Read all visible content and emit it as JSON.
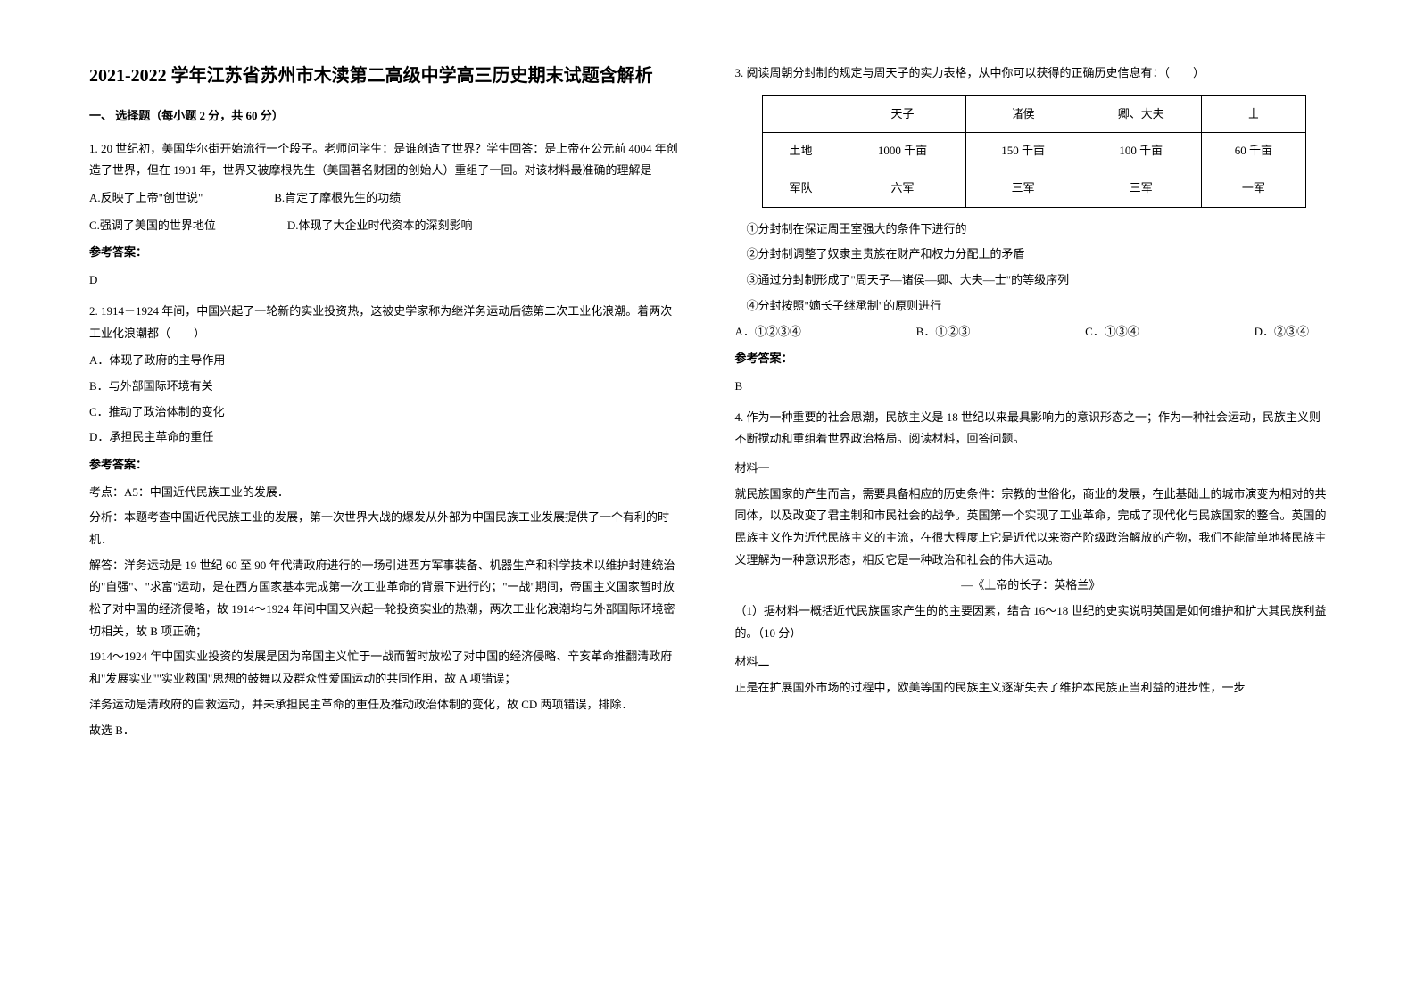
{
  "title": "2021-2022 学年江苏省苏州市木渎第二高级中学高三历史期末试题含解析",
  "section1_header": "一、 选择题（每小题 2 分，共 60 分）",
  "q1": {
    "text": "1. 20 世纪初，美国华尔街开始流行一个段子。老师问学生：是谁创造了世界？学生回答：是上帝在公元前 4004 年创造了世界，但在 1901 年，世界又被摩根先生（美国著名财团的创始人）重组了一回。对该材料最准确的理解是",
    "optA": "A.反映了上帝\"创世说\"",
    "optB": "B.肯定了摩根先生的功绩",
    "optC": "C.强调了美国的世界地位",
    "optD": "D.体现了大企业时代资本的深刻影响",
    "answer_label": "参考答案：",
    "answer": "D"
  },
  "q2": {
    "text": "2. 1914－1924 年间，中国兴起了一轮新的实业投资热，这被史学家称为继洋务运动后德第二次工业化浪潮。着两次工业化浪潮都（　　）",
    "optA": "A．体现了政府的主导作用",
    "optB": "B．与外部国际环境有关",
    "optC": "C．推动了政治体制的变化",
    "optD": "D．承担民主革命的重任",
    "answer_label": "参考答案：",
    "explain1": "考点：A5：中国近代民族工业的发展．",
    "explain2": "分析：本题考查中国近代民族工业的发展，第一次世界大战的爆发从外部为中国民族工业发展提供了一个有利的时机．",
    "explain3": "解答：洋务运动是 19 世纪 60 至 90 年代清政府进行的一场引进西方军事装备、机器生产和科学技术以维护封建统治的\"自强\"、\"求富\"运动，是在西方国家基本完成第一次工业革命的背景下进行的；\"一战\"期间，帝国主义国家暂时放松了对中国的经济侵略，故 1914～1924 年间中国又兴起一轮投资实业的热潮，两次工业化浪潮均与外部国际环境密切相关，故 B 项正确；",
    "explain4": "1914～1924 年中国实业投资的发展是因为帝国主义忙于一战而暂时放松了对中国的经济侵略、辛亥革命推翻清政府和\"发展实业\"\"实业救国\"思想的鼓舞以及群众性爱国运动的共同作用，故 A 项错误；",
    "explain5": "洋务运动是清政府的自救运动，并未承担民主革命的重任及推动政治体制的变化，故 CD 两项错误，排除．",
    "explain6": "故选 B．"
  },
  "q3": {
    "intro": "3. 阅读周朝分封制的规定与周天子的实力表格，从中你可以获得的正确历史信息有：（　　）",
    "table": {
      "headers": [
        "",
        "天子",
        "诸侯",
        "卿、大夫",
        "士"
      ],
      "row1": [
        "土地",
        "1000 千亩",
        "150 千亩",
        "100 千亩",
        "60 千亩"
      ],
      "row2": [
        "军队",
        "六军",
        "三军",
        "三军",
        "一军"
      ]
    },
    "stmt1": "①分封制在保证周王室强大的条件下进行的",
    "stmt2": "②分封制调整了奴隶主贵族在财产和权力分配上的矛盾",
    "stmt3": "③通过分封制形成了\"周天子—诸侯—卿、大夫—士\"的等级序列",
    "stmt4": "④分封按照\"嫡长子继承制\"的原则进行",
    "optA": "A．①②③④",
    "optB": "B．①②③",
    "optC": "C．①③④",
    "optD": "D．②③④",
    "answer_label": "参考答案：",
    "answer": "B"
  },
  "q4": {
    "text": "4. 作为一种重要的社会思潮，民族主义是 18 世纪以来最具影响力的意识形态之一；作为一种社会运动，民族主义则不断搅动和重组着世界政治格局。阅读材料，回答问题。",
    "mat1_label": "材料一",
    "mat1_text": "就民族国家的产生而言，需要具备相应的历史条件：宗教的世俗化，商业的发展，在此基础上的城市演变为相对的共同体，以及改变了君主制和市民社会的战争。英国第一个实现了工业革命，完成了现代化与民族国家的整合。英国的民族主义作为近代民族主义的主流，在很大程度上它是近代以来资产阶级政治解放的产物，我们不能简单地将民族主义理解为一种意识形态，相反它是一种政治和社会的伟大运动。",
    "mat1_source": "—《上帝的长子：英格兰》",
    "q4_sub1": "（1）据材料一概括近代民族国家产生的的主要因素，结合 16～18 世纪的史实说明英国是如何维护和扩大其民族利益的。（10 分）",
    "mat2_label": "材料二",
    "mat2_text": "正是在扩展国外市场的过程中，欧美等国的民族主义逐渐失去了维护本民族正当利益的进步性，一步"
  }
}
